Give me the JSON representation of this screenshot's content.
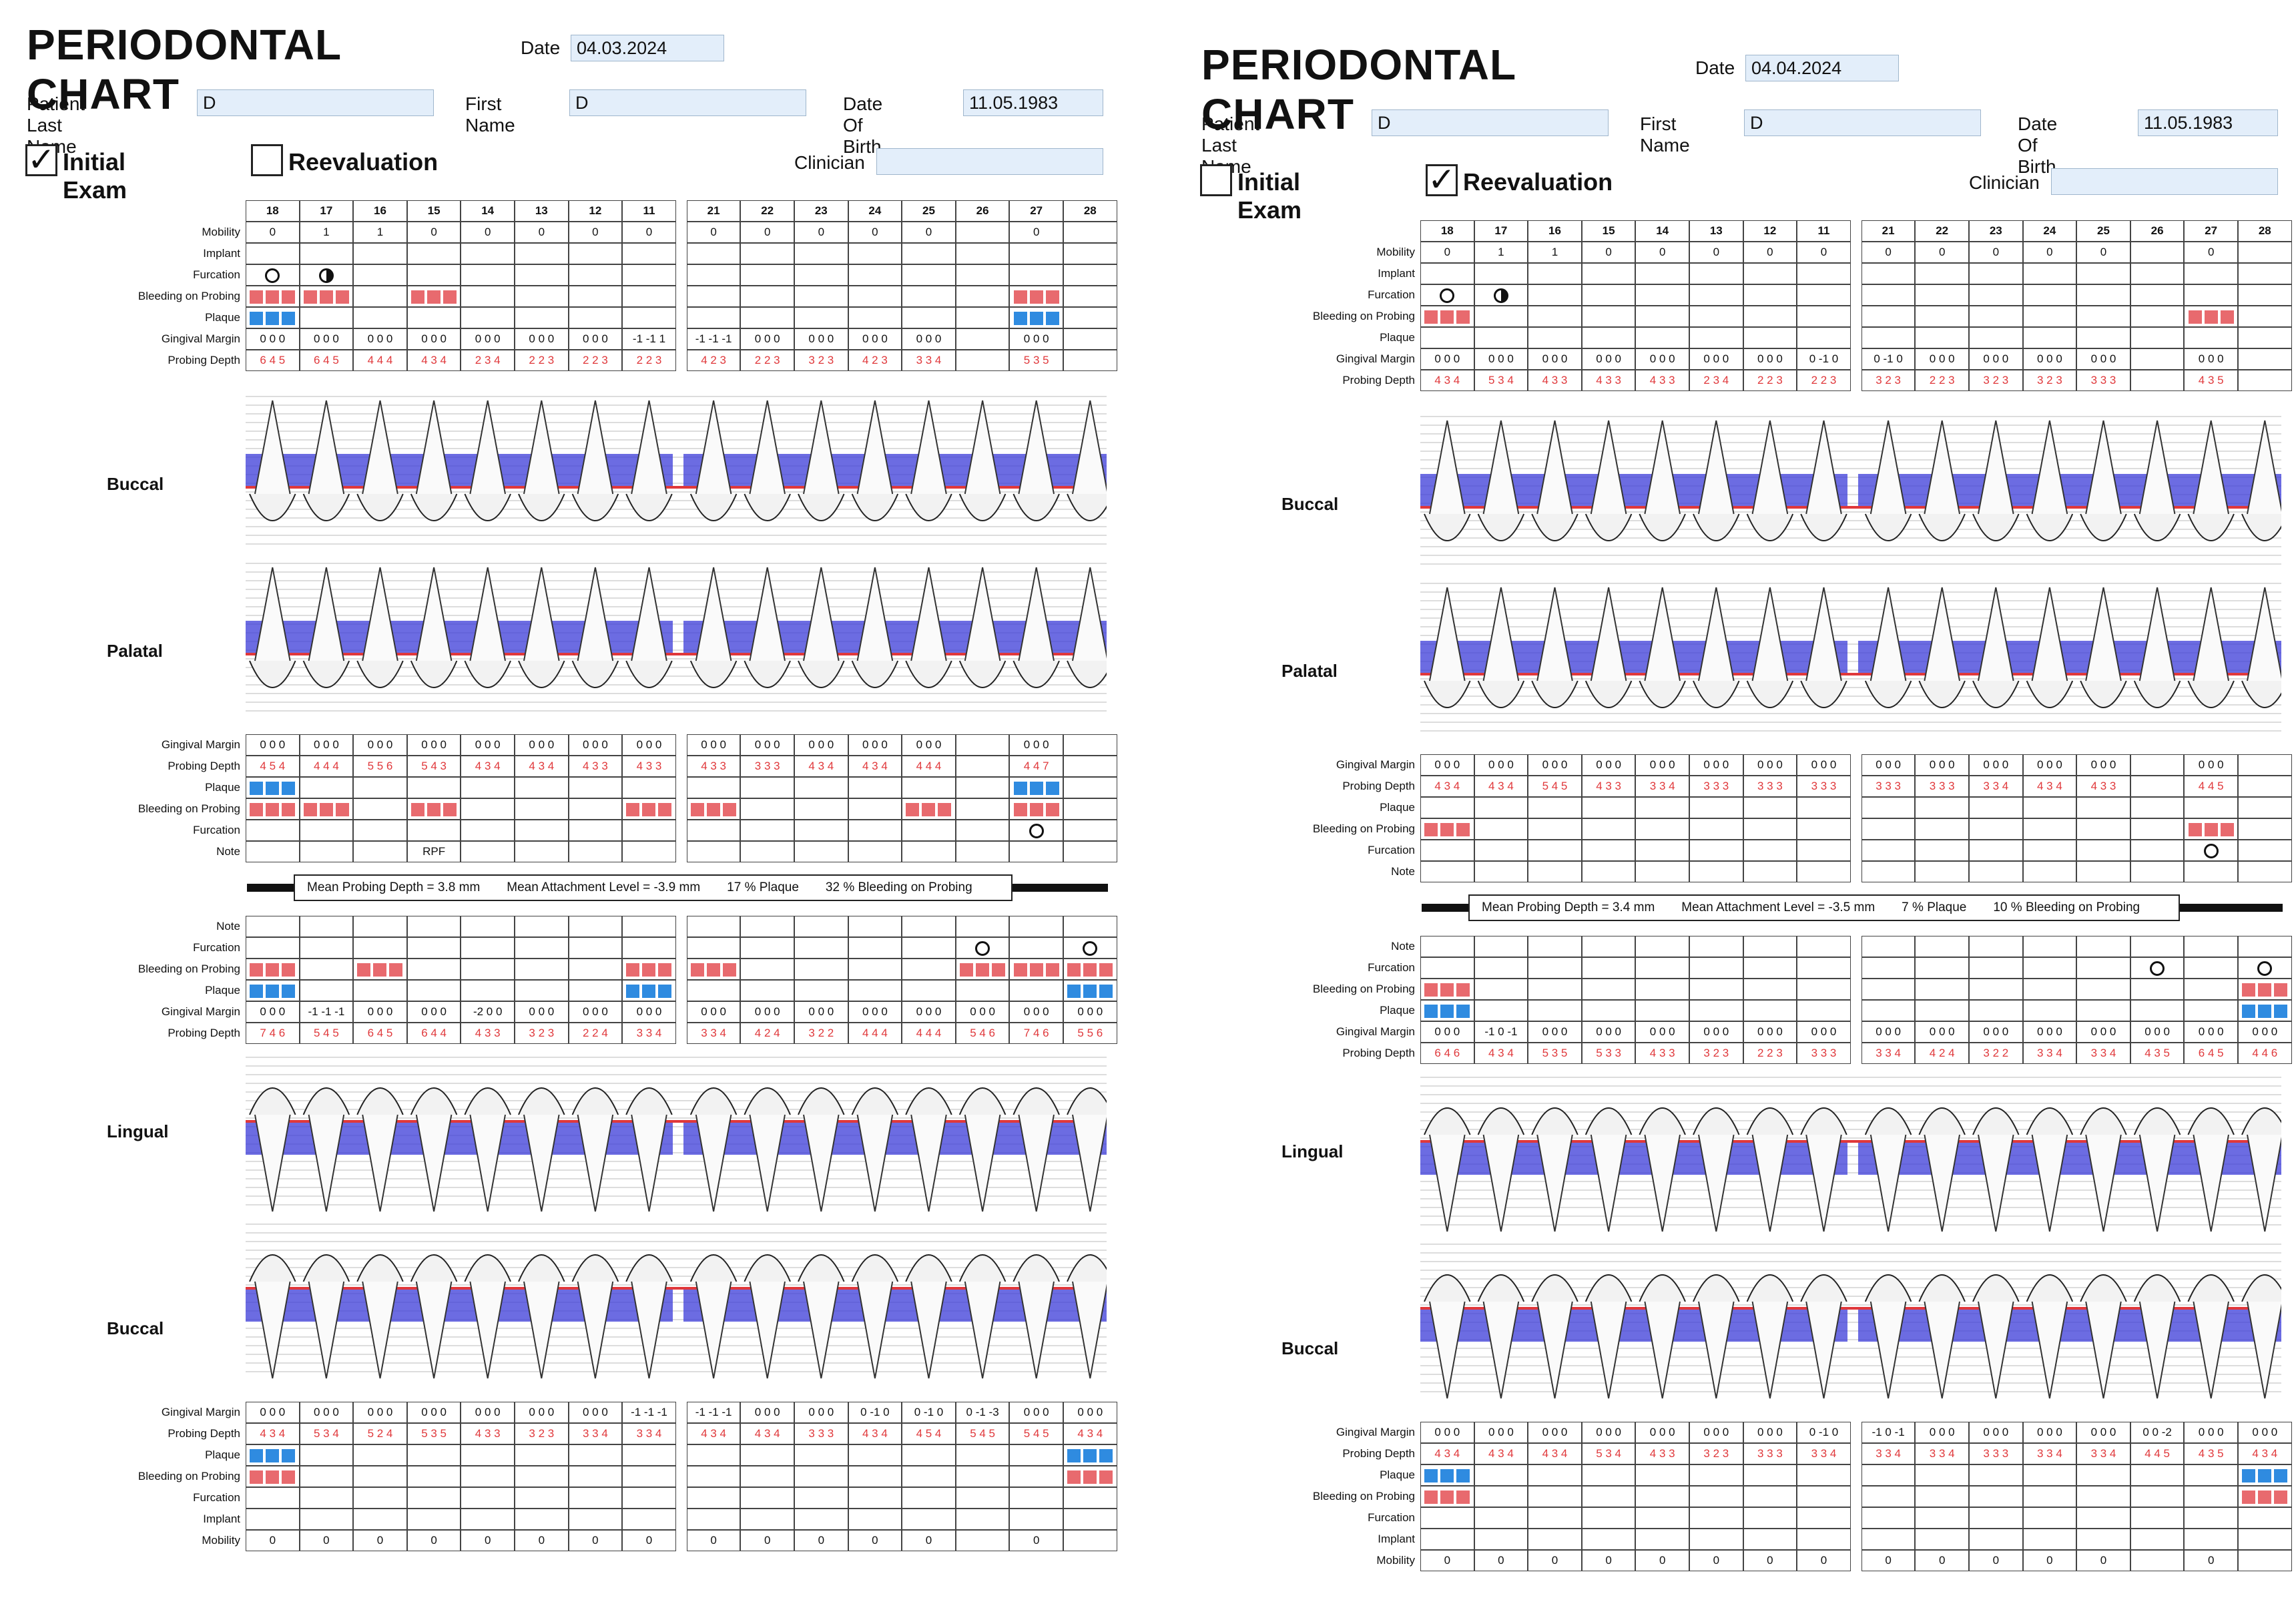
{
  "charts": [
    {
      "title": "PERIODONTAL CHART",
      "date_label": "Date",
      "date": "04.03.2024",
      "last_name_label": "Patient Last Name",
      "last_name": "D",
      "first_name_label": "First Name",
      "first_name": "D",
      "dob_label": "Date Of Birth",
      "dob": "11.05.1983",
      "initial_label": "Initial Exam",
      "initial_checked": "✓",
      "reeval_label": "Reevaluation",
      "reeval_checked": "",
      "clinician_label": "Clinician",
      "clinician": "",
      "views": {
        "buccal_up": "Buccal",
        "palatal": "Palatal",
        "lingual": "Lingual",
        "buccal_low": "Buccal"
      },
      "summary": {
        "mpd": "Mean Probing Depth = 3.8 mm",
        "mal": "Mean Attachment Level = -3.9 mm",
        "plaque": "17 % Plaque",
        "bop": "32 % Bleeding on Probing"
      },
      "upper_teeth": [
        "18",
        "17",
        "16",
        "15",
        "14",
        "13",
        "12",
        "11",
        "21",
        "22",
        "23",
        "24",
        "25",
        "26",
        "27",
        "28"
      ],
      "upper_mobility": [
        "0",
        "1",
        "1",
        "0",
        "0",
        "0",
        "0",
        "0",
        "0",
        "0",
        "0",
        "0",
        "0",
        "",
        "0",
        ""
      ],
      "upper_gm": [
        "0 0 0",
        "0 0 0",
        "0 0 0",
        "0 0 0",
        "0 0 0",
        "0 0 0",
        "0 0 0",
        "-1 -1 1",
        "-1 -1 -1",
        "0 0 0",
        "0 0 0",
        "0 0 0",
        "0 0 0",
        "",
        "0 0 0",
        ""
      ],
      "upper_pd": [
        "6 4 5",
        "6 4 5",
        "4 4 4",
        "4 3 4",
        "2 3 4",
        "2 2 3",
        "2 2 3",
        "2 2 3",
        "4 2 3",
        "2 2 3",
        "3 2 3",
        "4 2 3",
        "3 3 4",
        "",
        "5 3 5",
        ""
      ],
      "pal_gm": [
        "0 0 0",
        "0 0 0",
        "0 0 0",
        "0 0 0",
        "0 0 0",
        "0 0 0",
        "0 0 0",
        "0 0 0",
        "0 0 0",
        "0 0 0",
        "0 0 0",
        "0 0 0",
        "0 0 0",
        "",
        "0 0 0",
        ""
      ],
      "pal_pd": [
        "4 5 4",
        "4 4 4",
        "5 5 6",
        "5 4 3",
        "4 3 4",
        "4 3 4",
        "4 3 3",
        "4 3 3",
        "4 3 3",
        "3 3 3",
        "4 3 4",
        "4 3 4",
        "4 4 4",
        "",
        "4 4 7",
        ""
      ],
      "pal_note": [
        "",
        "",
        "",
        "RPF",
        "",
        "",
        "",
        "",
        "",
        "",
        "",
        "",
        "",
        "",
        "",
        ""
      ],
      "lower_gm": [
        "0 0 0",
        "-1 -1 -1",
        "0 0 0",
        "0 0 0",
        "-2 0 0",
        "0 0 0",
        "0 0 0",
        "0 0 0",
        "0 0 0",
        "0 0 0",
        "0 0 0",
        "0 0 0",
        "0 0 0",
        "0 0 0",
        "0 0 0",
        "0 0 0"
      ],
      "lower_pd": [
        "7 4 6",
        "5 4 5",
        "6 4 5",
        "6 4 4",
        "4 3 3",
        "3 2 3",
        "2 2 4",
        "3 3 4",
        "3 3 4",
        "4 2 4",
        "3 2 2",
        "4 4 4",
        "4 4 4",
        "5 4 6",
        "7 4 6",
        "5 5 6"
      ],
      "lowb_gm": [
        "0 0 0",
        "0 0 0",
        "0 0 0",
        "0 0 0",
        "0 0 0",
        "0 0 0",
        "0 0 0",
        "-1 -1 -1",
        "-1 -1 -1",
        "0 0 0",
        "0 0 0",
        "0 -1 0",
        "0 -1 0",
        "0 -1 -3",
        "0 0 0",
        "0 0 0"
      ],
      "lowb_pd": [
        "4 3 4",
        "5 3 4",
        "5 2 4",
        "5 3 5",
        "4 3 3",
        "3 2 3",
        "3 3 4",
        "3 3 4",
        "4 3 4",
        "4 3 4",
        "3 3 3",
        "4 3 4",
        "4 5 4",
        "5 4 5",
        "5 4 5",
        "4 3 4"
      ],
      "lower_mobility": [
        "0",
        "0",
        "0",
        "0",
        "0",
        "0",
        "0",
        "0",
        "0",
        "0",
        "0",
        "0",
        "0",
        "",
        "0",
        ""
      ]
    },
    {
      "title": "PERIODONTAL CHART",
      "date_label": "Date",
      "date": "04.04.2024",
      "last_name_label": "Patient Last Name",
      "last_name": "D",
      "first_name_label": "First Name",
      "first_name": "D",
      "dob_label": "Date Of Birth",
      "dob": "11.05.1983",
      "initial_label": "Initial Exam",
      "initial_checked": "",
      "reeval_label": "Reevaluation",
      "reeval_checked": "✓",
      "clinician_label": "Clinician",
      "clinician": "",
      "views": {
        "buccal_up": "Buccal",
        "palatal": "Palatal",
        "lingual": "Lingual",
        "buccal_low": "Buccal"
      },
      "summary": {
        "mpd": "Mean Probing Depth = 3.4 mm",
        "mal": "Mean Attachment Level = -3.5 mm",
        "plaque": "7 % Plaque",
        "bop": "10 % Bleeding on Probing"
      },
      "upper_teeth": [
        "18",
        "17",
        "16",
        "15",
        "14",
        "13",
        "12",
        "11",
        "21",
        "22",
        "23",
        "24",
        "25",
        "26",
        "27",
        "28"
      ],
      "upper_mobility": [
        "0",
        "1",
        "1",
        "0",
        "0",
        "0",
        "0",
        "0",
        "0",
        "0",
        "0",
        "0",
        "0",
        "",
        "0",
        ""
      ],
      "upper_gm": [
        "0 0 0",
        "0 0 0",
        "0 0 0",
        "0 0 0",
        "0 0 0",
        "0 0 0",
        "0 0 0",
        "0 -1 0",
        "0 -1 0",
        "0 0 0",
        "0 0 0",
        "0 0 0",
        "0 0 0",
        "",
        "0 0 0",
        ""
      ],
      "upper_pd": [
        "4 3 4",
        "5 3 4",
        "4 3 3",
        "4 3 3",
        "4 3 3",
        "2 3 4",
        "2 2 3",
        "2 2 3",
        "3 2 3",
        "2 2 3",
        "3 2 3",
        "3 2 3",
        "3 3 3",
        "",
        "4 3 5",
        ""
      ],
      "pal_gm": [
        "0 0 0",
        "0 0 0",
        "0 0 0",
        "0 0 0",
        "0 0 0",
        "0 0 0",
        "0 0 0",
        "0 0 0",
        "0 0 0",
        "0 0 0",
        "0 0 0",
        "0 0 0",
        "0 0 0",
        "",
        "0 0 0",
        ""
      ],
      "pal_pd": [
        "4 3 4",
        "4 3 4",
        "5 4 5",
        "4 3 3",
        "3 3 4",
        "3 3 3",
        "3 3 3",
        "3 3 3",
        "3 3 3",
        "3 3 3",
        "3 3 4",
        "4 3 4",
        "4 3 3",
        "",
        "4 4 5",
        ""
      ],
      "pal_note": [
        "",
        "",
        "",
        "",
        "",
        "",
        "",
        "",
        "",
        "",
        "",
        "",
        "",
        "",
        "",
        ""
      ],
      "lower_gm": [
        "0 0 0",
        "-1 0 -1",
        "0 0 0",
        "0 0 0",
        "0 0 0",
        "0 0 0",
        "0 0 0",
        "0 0 0",
        "0 0 0",
        "0 0 0",
        "0 0 0",
        "0 0 0",
        "0 0 0",
        "0 0 0",
        "0 0 0",
        "0 0 0"
      ],
      "lower_pd": [
        "6 4 6",
        "4 3 4",
        "5 3 5",
        "5 3 3",
        "4 3 3",
        "3 2 3",
        "2 2 3",
        "3 3 3",
        "3 3 4",
        "4 2 4",
        "3 2 2",
        "3 3 4",
        "3 3 4",
        "4 3 5",
        "6 4 5",
        "4 4 6"
      ],
      "lowb_gm": [
        "0 0 0",
        "0 0 0",
        "0 0 0",
        "0 0 0",
        "0 0 0",
        "0 0 0",
        "0 0 0",
        "0 -1 0",
        "-1 0 -1",
        "0 0 0",
        "0 0 0",
        "0 0 0",
        "0 0 0",
        "0 0 -2",
        "0 0 0",
        "0 0 0"
      ],
      "lowb_pd": [
        "4 3 4",
        "4 3 4",
        "4 3 4",
        "5 3 4",
        "4 3 3",
        "3 2 3",
        "3 3 3",
        "3 3 4",
        "3 3 4",
        "3 3 4",
        "3 3 3",
        "3 3 4",
        "3 3 4",
        "4 4 5",
        "4 3 5",
        "4 3 4"
      ],
      "lower_mobility": [
        "0",
        "0",
        "0",
        "0",
        "0",
        "0",
        "0",
        "0",
        "0",
        "0",
        "0",
        "0",
        "0",
        "",
        "0",
        ""
      ]
    }
  ],
  "row_labels": {
    "mobility": "Mobility",
    "implant": "Implant",
    "furcation": "Furcation",
    "bop": "Bleeding on Probing",
    "plaque": "Plaque",
    "gm": "Gingival Margin",
    "pd": "Probing Depth",
    "note": "Note"
  },
  "colors": {
    "bleeding": "#e86a6e",
    "plaque": "#2f8be0",
    "gum": "#2a2ad0",
    "attach": "#e0383b"
  }
}
